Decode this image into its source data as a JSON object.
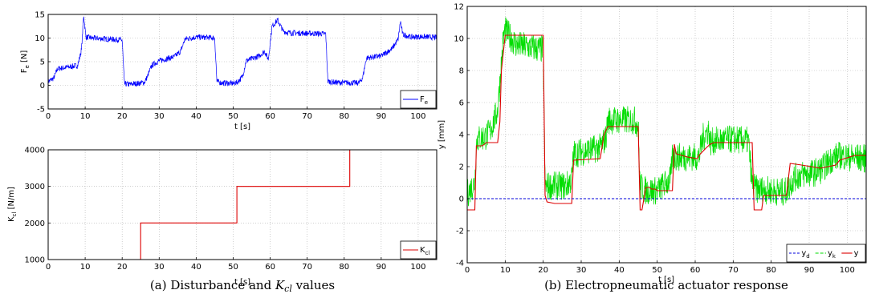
{
  "chart_data": [
    {
      "type": "line",
      "id": "fe",
      "xlabel": "t [s]",
      "ylabel": "F",
      "ylabel_sub": "e",
      "ylabel_unit": " [N]",
      "xlim": [
        0,
        105
      ],
      "ylim": [
        -5,
        15
      ],
      "xticks": [
        0,
        10,
        20,
        30,
        40,
        50,
        60,
        70,
        80,
        90,
        100
      ],
      "yticks": [
        -5,
        0,
        5,
        10,
        15
      ],
      "grid": true,
      "legend_position": "bottom-right",
      "series": [
        {
          "name": "F",
          "name_sub": "e",
          "color": "#0000ff",
          "noise": 0.6,
          "x": [
            0,
            1.5,
            2.5,
            5,
            8,
            9,
            9.6,
            10.2,
            12,
            16,
            20,
            20.6,
            22,
            26,
            26.8,
            28,
            30,
            34,
            35.8,
            37,
            40,
            44,
            45,
            45.6,
            47,
            50,
            51,
            52.5,
            53.5,
            55,
            57,
            58.5,
            59.5,
            60.5,
            62,
            63.5,
            64.5,
            65.5,
            70,
            75,
            75.6,
            78,
            84,
            85,
            86,
            90,
            93,
            94.6,
            95.2,
            95.8,
            98,
            101,
            105
          ],
          "y": [
            0.8,
            1.5,
            3.5,
            3.8,
            4.2,
            7.5,
            14.8,
            10.2,
            10,
            9.8,
            9.6,
            0.3,
            0.2,
            0.6,
            1.8,
            4.2,
            5.2,
            6,
            7.2,
            9.8,
            10.2,
            10.1,
            10,
            0.8,
            0.5,
            0.4,
            0.6,
            1.8,
            5.2,
            5.6,
            6.2,
            7.2,
            5.5,
            12.5,
            13.8,
            11.5,
            11.2,
            11.1,
            11,
            10.9,
            0.8,
            0.6,
            0.5,
            1.6,
            5.8,
            6.2,
            7.8,
            9.8,
            13.6,
            10.8,
            10.2,
            10.3,
            10.1
          ]
        }
      ]
    },
    {
      "type": "line",
      "id": "kcl",
      "xlabel": "t [s]",
      "ylabel": "K",
      "ylabel_sub": "cl",
      "ylabel_unit": " [N/m]",
      "xlim": [
        0,
        105
      ],
      "ylim": [
        1000,
        4000
      ],
      "xticks": [
        0,
        10,
        20,
        30,
        40,
        50,
        60,
        70,
        80,
        90,
        100
      ],
      "yticks": [
        1000,
        2000,
        3000,
        4000
      ],
      "grid": true,
      "legend_position": "bottom-right",
      "series": [
        {
          "name": "K",
          "name_sub": "cl",
          "color": "#dd0000",
          "x": [
            0,
            25,
            25,
            51,
            51,
            81.5,
            81.5,
            105
          ],
          "y": [
            1000,
            1000,
            2000,
            2000,
            3000,
            3000,
            4000,
            4000
          ]
        }
      ]
    },
    {
      "type": "line",
      "id": "resp",
      "xlabel": "t [s]",
      "ylabel": "y [mm]",
      "xlim": [
        0,
        105
      ],
      "ylim": [
        -4,
        12
      ],
      "xticks": [
        0,
        10,
        20,
        30,
        40,
        50,
        60,
        70,
        80,
        90,
        100
      ],
      "yticks": [
        -4,
        -2,
        0,
        2,
        4,
        6,
        8,
        10,
        12
      ],
      "grid": true,
      "legend_position": "bottom-right",
      "series": [
        {
          "name": "y",
          "name_sub": "k",
          "color": "#00dd00",
          "dash": "4,2",
          "noise": 0.9,
          "x": [
            0,
            2,
            2.5,
            5,
            6,
            8,
            9.5,
            10,
            13,
            20,
            20.5,
            23,
            26,
            27.5,
            28,
            35,
            36.5,
            37,
            44,
            45,
            45.5,
            47,
            48,
            50,
            53.5,
            54,
            57,
            61,
            62,
            63.5,
            64,
            65,
            70,
            74,
            75,
            76,
            80,
            83,
            84,
            86,
            88,
            91,
            93,
            94,
            96,
            98,
            100,
            105
          ],
          "y": [
            0.3,
            1,
            3.7,
            3.9,
            4.2,
            5.5,
            10,
            10.5,
            9.6,
            9.3,
            0.8,
            0.8,
            0.8,
            1.2,
            2.8,
            3.2,
            3.8,
            4.9,
            4.9,
            4.6,
            0.8,
            0.5,
            0.5,
            0.5,
            1.2,
            2.6,
            2.6,
            2.6,
            3.8,
            4.3,
            3.5,
            3.6,
            3.7,
            3.6,
            0.9,
            0.6,
            0.5,
            0.4,
            0.5,
            1.3,
            1.5,
            1.6,
            1.8,
            2,
            2.5,
            2.7,
            2.6,
            2.5
          ]
        },
        {
          "name": "y",
          "name_sub": "",
          "color": "#dd0000",
          "x": [
            0,
            2,
            2.4,
            4,
            5,
            5.6,
            8,
            8.6,
            9,
            10,
            20,
            20.5,
            21,
            23,
            27.5,
            28,
            35,
            36,
            37,
            45,
            45.5,
            46,
            47,
            48,
            48.5,
            49.5,
            50,
            54,
            54.5,
            55,
            58,
            60.5,
            61,
            63,
            64,
            65,
            75,
            75.5,
            76,
            77.5,
            78,
            83,
            84,
            85,
            88,
            93,
            97,
            98,
            102,
            105
          ],
          "y": [
            -0.7,
            -0.7,
            3.3,
            3.3,
            3.5,
            3.5,
            3.5,
            4.8,
            8,
            10.2,
            10.2,
            0.2,
            -0.2,
            -0.3,
            -0.3,
            2.4,
            2.5,
            4,
            4.5,
            4.5,
            -0.7,
            -0.7,
            0.7,
            0.7,
            0.6,
            0.6,
            0.5,
            0.5,
            3.4,
            2.8,
            2.6,
            2.5,
            2.7,
            3.2,
            3.4,
            3.5,
            3.5,
            -0.7,
            -0.7,
            -0.7,
            0.2,
            0.2,
            0.2,
            2.2,
            2.1,
            1.9,
            2.1,
            2.4,
            2.7,
            2.7
          ]
        },
        {
          "name": "y",
          "name_sub": "d",
          "color": "#0000dd",
          "dash": "3,2",
          "x": [
            0,
            105
          ],
          "y": [
            0,
            0
          ]
        }
      ]
    }
  ],
  "captions": {
    "left_prefix": "(a) Disturbance and ",
    "left_math": "K",
    "left_math_sub": "cl",
    "left_suffix": " values",
    "right": "(b) Electropneumatic actuator response"
  },
  "legend_order": {
    "resp": [
      2,
      0,
      1
    ]
  }
}
